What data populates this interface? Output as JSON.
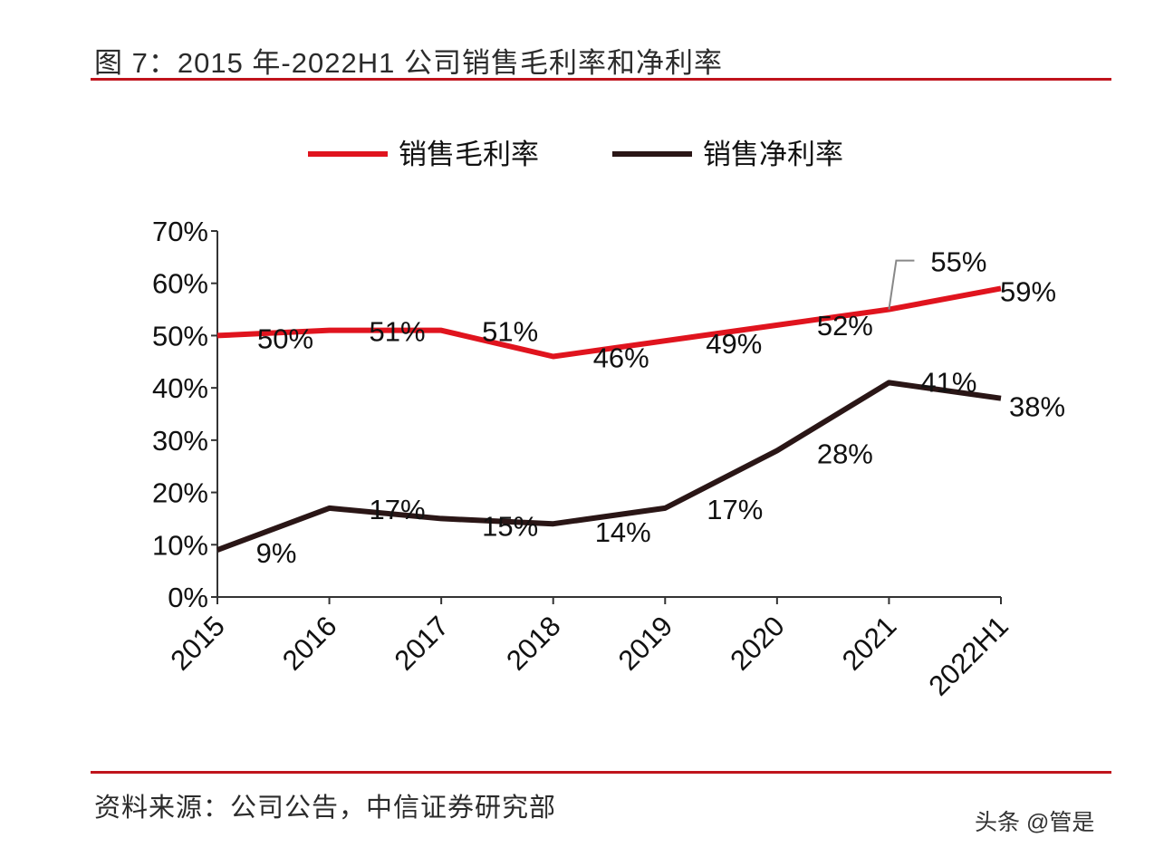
{
  "title": "图 7：2015 年-2022H1 公司销售毛利率和净利率",
  "source": "资料来源：公司公告，中信证券研究部",
  "watermark": "头条 @管是",
  "chart_data": {
    "type": "line",
    "categories": [
      "2015",
      "2016",
      "2017",
      "2018",
      "2019",
      "2020",
      "2021",
      "2022H1"
    ],
    "ylim": [
      0,
      70
    ],
    "yticks": [
      "0%",
      "10%",
      "20%",
      "30%",
      "40%",
      "50%",
      "60%",
      "70%"
    ],
    "grid": false,
    "legend_position": "top",
    "series": [
      {
        "name": "销售毛利率",
        "color": "#e0141e",
        "values": [
          50,
          51,
          51,
          46,
          49,
          52,
          55,
          59
        ],
        "labels": [
          "50%",
          "51%",
          "51%",
          "46%",
          "49%",
          "52%",
          "55%",
          "59%"
        ]
      },
      {
        "name": "销售净利率",
        "color": "#2a1616",
        "values": [
          9,
          17,
          15,
          14,
          17,
          28,
          41,
          38
        ],
        "labels": [
          "9%",
          "17%",
          "15%",
          "14%",
          "17%",
          "28%",
          "41%",
          "38%"
        ]
      }
    ]
  }
}
